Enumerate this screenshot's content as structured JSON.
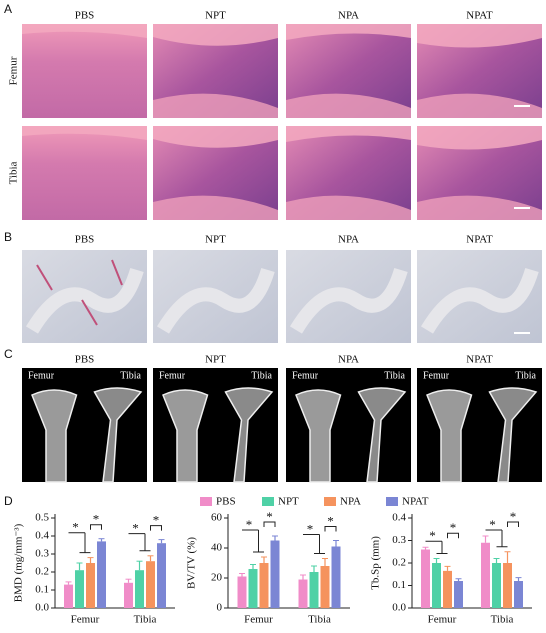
{
  "panel_labels": [
    "A",
    "B",
    "C",
    "D"
  ],
  "panel_a": {
    "columns": [
      "PBS",
      "NPT",
      "NPA",
      "NPAT"
    ],
    "rows": [
      "Femur",
      "Tibia"
    ]
  },
  "panel_b": {
    "columns": [
      "PBS",
      "NPT",
      "NPA",
      "NPAT"
    ]
  },
  "panel_c": {
    "columns": [
      "PBS",
      "NPT",
      "NPA",
      "NPAT"
    ],
    "sublabels": [
      "Femur",
      "Tibia"
    ]
  },
  "chart_data": [
    {
      "type": "bar",
      "ylabel": "BMD (mg/mm⁻³)",
      "categories": [
        "Femur",
        "Tibia"
      ],
      "series": [
        {
          "name": "PBS",
          "color": "#f08cc8",
          "values": [
            0.13,
            0.14
          ],
          "errors": [
            0.015,
            0.02
          ]
        },
        {
          "name": "NPT",
          "color": "#4fd1a6",
          "values": [
            0.21,
            0.21
          ],
          "errors": [
            0.04,
            0.05
          ]
        },
        {
          "name": "NPA",
          "color": "#f5935e",
          "values": [
            0.25,
            0.26
          ],
          "errors": [
            0.03,
            0.03
          ]
        },
        {
          "name": "NPAT",
          "color": "#7b86d4",
          "values": [
            0.37,
            0.36
          ],
          "errors": [
            0.015,
            0.02
          ]
        }
      ],
      "ylim": [
        0,
        0.5
      ],
      "yticks": [
        {
          "value": 0,
          "label": "0.0"
        },
        0.1,
        0.2,
        0.3,
        0.4,
        0.5
      ],
      "annotations": [
        "*",
        "*",
        "*",
        "*"
      ]
    },
    {
      "type": "bar",
      "ylabel": "BV/TV (%)",
      "categories": [
        "Femur",
        "Tibia"
      ],
      "series": [
        {
          "color": "#f08cc8",
          "values": [
            21,
            19
          ],
          "errors": [
            2,
            3
          ]
        },
        {
          "color": "#4fd1a6",
          "values": [
            26,
            24
          ],
          "errors": [
            3,
            4
          ]
        },
        {
          "color": "#f5935e",
          "values": [
            30,
            28
          ],
          "errors": [
            4,
            5
          ]
        },
        {
          "color": "#7b86d4",
          "values": [
            45,
            41
          ],
          "errors": [
            3,
            4
          ]
        }
      ],
      "ylim": [
        0,
        60
      ],
      "yticks": [
        0,
        20,
        40,
        60
      ],
      "annotations": [
        "*",
        "*",
        "*",
        "*"
      ]
    },
    {
      "type": "bar",
      "ylabel": "Tb.Sp (mm)",
      "categories": [
        "Femur",
        "Tibia"
      ],
      "series": [
        {
          "color": "#f08cc8",
          "values": [
            0.26,
            0.29
          ],
          "errors": [
            0.01,
            0.03
          ]
        },
        {
          "color": "#4fd1a6",
          "values": [
            0.2,
            0.2
          ],
          "errors": [
            0.02,
            0.02
          ]
        },
        {
          "color": "#f5935e",
          "values": [
            0.165,
            0.2
          ],
          "errors": [
            0.02,
            0.05
          ]
        },
        {
          "color": "#7b86d4",
          "values": [
            0.12,
            0.12
          ],
          "errors": [
            0.01,
            0.015
          ]
        }
      ],
      "ylim": [
        0,
        0.4
      ],
      "yticks": [
        {
          "value": 0,
          "label": "0.0"
        },
        0.1,
        0.2,
        0.3,
        0.4
      ],
      "annotations": [
        "*",
        "*",
        "*",
        "*"
      ]
    }
  ]
}
